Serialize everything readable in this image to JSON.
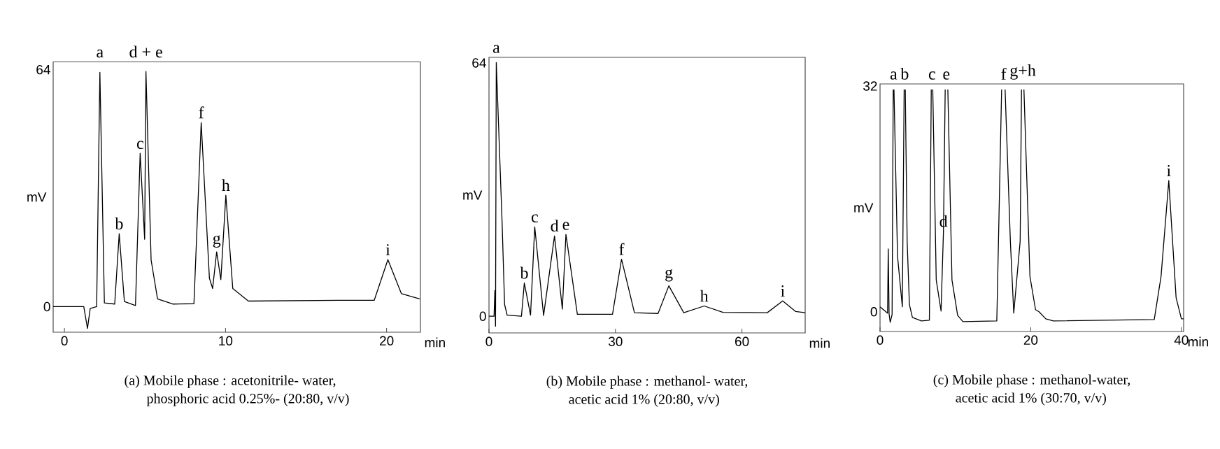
{
  "chart_data": [
    {
      "type": "line",
      "title": "(a) Mobile phase : acetonitrile- water,",
      "subtitle": "phosphoric acid 0.25%- (20:80, v/v)",
      "xlabel": "min",
      "ylabel": "mV",
      "color": "#000000",
      "x": [
        -0.7,
        1.2,
        1.43,
        1.6,
        2.0,
        2.2,
        2.48,
        3.12,
        3.4,
        3.72,
        4.41,
        4.7,
        4.98,
        5.06,
        5.38,
        5.78,
        6.75,
        8.04,
        8.49,
        9.0,
        9.2,
        9.45,
        9.71,
        10.02,
        10.45,
        11.42,
        17.05,
        19.23,
        20.08,
        20.92,
        22.05
      ],
      "values": [
        0,
        0,
        -5.9,
        -0.5,
        0,
        63.3,
        1.0,
        0.7,
        19.7,
        1.4,
        0.3,
        41.4,
        18.2,
        63.5,
        12.6,
        2.1,
        0.7,
        0.8,
        49.7,
        7.7,
        4.9,
        14.8,
        7.3,
        30.1,
        4.9,
        1.5,
        1.7,
        1.7,
        12.7,
        3.5,
        2.1
      ],
      "xlim": [
        -0.7,
        22.1
      ],
      "ylim": [
        -6.9,
        66.1
      ],
      "xticks": [
        0,
        10,
        20
      ],
      "yticks": [
        0,
        64
      ],
      "annotations": [
        {
          "text": "a",
          "x": 2.2,
          "y": 63.3
        },
        {
          "text": "b",
          "x": 3.4,
          "y": 19.7
        },
        {
          "text": "c",
          "x": 4.7,
          "y": 41.4
        },
        {
          "text": "d + e",
          "x": 5.06,
          "y": 63.5
        },
        {
          "text": "f",
          "x": 8.49,
          "y": 49.7
        },
        {
          "text": "g",
          "x": 9.45,
          "y": 14.8
        },
        {
          "text": "h",
          "x": 10.02,
          "y": 30.1
        },
        {
          "text": "i",
          "x": 20.08,
          "y": 12.7
        }
      ]
    },
    {
      "type": "line",
      "title": "(b) Mobile phase : methanol- water,",
      "subtitle": "acetic acid 1% (20:80, v/v)",
      "xlabel": "min",
      "ylabel": "mV",
      "color": "#000000",
      "x": [
        0,
        1.2,
        1.4,
        1.55,
        1.73,
        3.1,
        3.7,
        4.3,
        7.7,
        8.38,
        9.86,
        10.85,
        12.95,
        15.54,
        17.4,
        18.25,
        20.96,
        29.3,
        31.44,
        34.5,
        40.1,
        42.66,
        46.2,
        51.05,
        55.5,
        66.0,
        69.67,
        72.75,
        75.0
      ],
      "values": [
        0,
        0,
        6.5,
        -2.5,
        64.1,
        24,
        3,
        0.3,
        0,
        8.4,
        0.3,
        22.6,
        0.2,
        20.3,
        1.8,
        20.7,
        0.5,
        0.5,
        14.4,
        0.9,
        0.7,
        7.7,
        0.9,
        2.6,
        1.0,
        0.9,
        3.9,
        1.2,
        0.9
      ],
      "xlim": [
        0,
        75
      ],
      "ylim": [
        -4.2,
        65.4
      ],
      "xticks": [
        0,
        30,
        60
      ],
      "yticks": [
        0,
        64
      ],
      "annotations": [
        {
          "text": "a",
          "x": 1.73,
          "y": 64.1
        },
        {
          "text": "b",
          "x": 8.38,
          "y": 8.4
        },
        {
          "text": "c",
          "x": 10.85,
          "y": 22.6
        },
        {
          "text": "d",
          "x": 15.54,
          "y": 20.3
        },
        {
          "text": "e",
          "x": 18.25,
          "y": 20.7
        },
        {
          "text": "f",
          "x": 31.44,
          "y": 14.4
        },
        {
          "text": "g",
          "x": 42.66,
          "y": 7.7
        },
        {
          "text": "h",
          "x": 51.05,
          "y": 2.6
        },
        {
          "text": "i",
          "x": 69.67,
          "y": 3.9
        }
      ]
    },
    {
      "type": "line",
      "title": "(c) Mobile phase : methanol-water,",
      "subtitle": "acetic acid 1% (30:70, v/v)",
      "xlabel": "min",
      "ylabel": "mV",
      "color": "#000000",
      "x": [
        0,
        1.0,
        1.09,
        1.2,
        1.35,
        1.6,
        1.75,
        1.8,
        1.85,
        2.32,
        2.96,
        3.2,
        3.28,
        3.35,
        3.6,
        3.9,
        4.3,
        5.5,
        6.55,
        6.8,
        6.9,
        7.0,
        7.46,
        8.1,
        8.42,
        8.65,
        8.8,
        9.0,
        9.55,
        10.3,
        11.0,
        15.5,
        16.14,
        16.4,
        16.6,
        17.3,
        17.75,
        18.6,
        18.78,
        18.95,
        19.1,
        19.9,
        20.64,
        21.1,
        22.0,
        23.0,
        36.4,
        37.3,
        38.33,
        39.3,
        40.0,
        40.3
      ],
      "values": [
        0.7,
        -0.2,
        8.9,
        -0.3,
        -1.5,
        -0.4,
        31.5,
        null,
        31.5,
        7.9,
        0.7,
        31.5,
        null,
        31.5,
        10,
        1,
        -0.8,
        -1.3,
        -1.2,
        31.5,
        null,
        31.5,
        4.5,
        0.1,
        11.4,
        31.5,
        null,
        31.5,
        4.5,
        -0.5,
        -1.4,
        -1.3,
        31.5,
        null,
        31.5,
        10,
        -0.2,
        10,
        31.5,
        null,
        31.5,
        5,
        0.3,
        0,
        -1,
        -1.3,
        -1.1,
        5,
        18.6,
        2,
        -1.0,
        -1.0
      ],
      "xlim": [
        0,
        40.3
      ],
      "ylim": [
        -2.8,
        32.3
      ],
      "xticks": [
        0,
        20,
        40
      ],
      "yticks": [
        0,
        32
      ],
      "annotations": [
        {
          "text": "a",
          "x": 1.8,
          "y": 31.5
        },
        {
          "text": "b",
          "x": 3.28,
          "y": 31.5
        },
        {
          "text": "c",
          "x": 6.9,
          "y": 31.5
        },
        {
          "text": "e",
          "x": 8.8,
          "y": 31.5
        },
        {
          "text": "d",
          "x": 8.42,
          "y": 11.4
        },
        {
          "text": "f",
          "x": 16.4,
          "y": 31.5
        },
        {
          "text": "g+h",
          "x": 18.95,
          "y": 31.5
        },
        {
          "text": "i",
          "x": 38.33,
          "y": 18.6
        }
      ]
    }
  ]
}
